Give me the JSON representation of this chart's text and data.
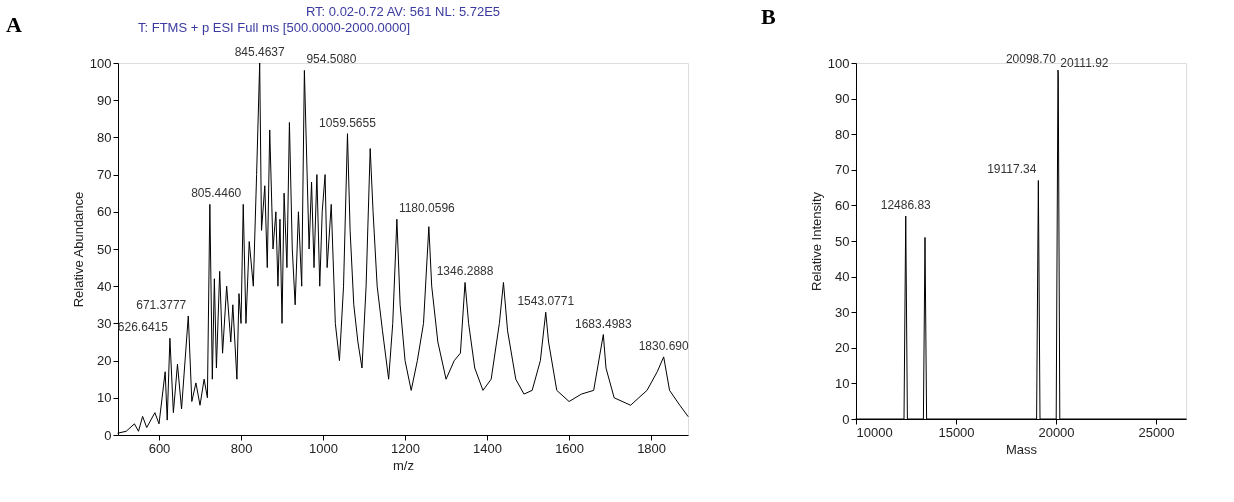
{
  "chart_data": [
    {
      "type": "line",
      "title": "A",
      "xlabel": "m/z",
      "ylabel": "Relative Abundance",
      "xlim": [
        500,
        1890
      ],
      "ylim": [
        0,
        100
      ],
      "xticks": [
        600,
        800,
        1000,
        1200,
        1400,
        1600,
        1800
      ],
      "yticks": [
        0,
        10,
        20,
        30,
        40,
        50,
        60,
        70,
        80,
        90,
        100
      ],
      "grid": false,
      "marker": "none",
      "line_style": "solid",
      "series": [
        {
          "color": "#000000",
          "x": [
            500,
            520,
            540,
            550,
            560,
            570,
            590,
            600,
            615,
            620,
            626.6,
            635,
            645,
            655,
            671.4,
            680,
            690,
            700,
            710,
            718,
            724,
            730,
            735,
            740,
            748,
            755,
            765,
            775,
            780,
            790,
            795,
            800,
            805.4,
            812,
            820,
            830,
            838,
            845.5,
            850,
            858,
            864,
            870,
            878,
            885,
            890,
            895,
            900,
            905,
            912,
            918,
            925,
            932,
            940,
            948,
            954.5,
            960,
            966,
            972,
            978,
            985,
            992,
            998,
            1005,
            1010,
            1020,
            1030,
            1040,
            1050,
            1059.6,
            1066,
            1075,
            1085,
            1095,
            1105,
            1115,
            1122,
            1132,
            1145,
            1160,
            1170,
            1180.1,
            1188,
            1200,
            1215,
            1230,
            1245,
            1258,
            1265,
            1280,
            1300,
            1320,
            1335,
            1346.3,
            1355,
            1370,
            1390,
            1410,
            1430,
            1440,
            1450,
            1470,
            1490,
            1510,
            1530,
            1543.1,
            1550,
            1570,
            1600,
            1630,
            1660,
            1683.5,
            1690,
            1710,
            1750,
            1790,
            1815,
            1830.7,
            1845,
            1870,
            1890
          ],
          "values": [
            0.5,
            1,
            3,
            1,
            5,
            2,
            6,
            3,
            17,
            4,
            26,
            6,
            19,
            7,
            32,
            9,
            14,
            8,
            15,
            10,
            62,
            15,
            42,
            18,
            44,
            22,
            40,
            25,
            35,
            15,
            38,
            30,
            62,
            30,
            52,
            40,
            70,
            100,
            55,
            67,
            45,
            82,
            50,
            60,
            40,
            58,
            30,
            65,
            45,
            84,
            50,
            35,
            60,
            40,
            98,
            75,
            50,
            68,
            45,
            70,
            40,
            60,
            70,
            45,
            62,
            30,
            20,
            40,
            81,
            55,
            35,
            25,
            18,
            40,
            77,
            60,
            40,
            28,
            15,
            30,
            58,
            35,
            20,
            12,
            20,
            30,
            56,
            40,
            25,
            15,
            20,
            22,
            41,
            30,
            18,
            12,
            15,
            30,
            41,
            28,
            15,
            11,
            12,
            20,
            33,
            25,
            12,
            9,
            11,
            12,
            27,
            18,
            10,
            8,
            12,
            17,
            21,
            12,
            8,
            5
          ]
        }
      ],
      "annotations": [
        "RT: 0.02-0.72   AV: 561   NL: 5.72E5",
        "T: FTMS + p ESI Full ms [500.0000-2000.0000]",
        {
          "text": "626.6415",
          "x": 626.6,
          "y": 26
        },
        {
          "text": "671.3777",
          "x": 671.4,
          "y": 32
        },
        {
          "text": "805.4460",
          "x": 805.4,
          "y": 62
        },
        {
          "text": "845.4637",
          "x": 845.5,
          "y": 100
        },
        {
          "text": "954.5080",
          "x": 954.5,
          "y": 98
        },
        {
          "text": "1059.5655",
          "x": 1059.6,
          "y": 81
        },
        {
          "text": "1180.0596",
          "x": 1180.1,
          "y": 58
        },
        {
          "text": "1346.2888",
          "x": 1346.3,
          "y": 41
        },
        {
          "text": "1543.0771",
          "x": 1543.1,
          "y": 33
        },
        {
          "text": "1683.4983",
          "x": 1683.5,
          "y": 27
        },
        {
          "text": "1830.690",
          "x": 1830.7,
          "y": 21
        }
      ]
    },
    {
      "type": "line",
      "title": "B",
      "xlabel": "Mass",
      "ylabel": "Relative Intensity",
      "xlim": [
        10000,
        26500
      ],
      "ylim": [
        0,
        100
      ],
      "xticks": [
        10000,
        15000,
        20000,
        25000
      ],
      "yticks": [
        0,
        10,
        20,
        30,
        40,
        50,
        60,
        70,
        80,
        90,
        100
      ],
      "grid": false,
      "marker": "none",
      "line_style": "solid",
      "series": [
        {
          "color": "#000000",
          "x": [
            10000,
            12400,
            12486.83,
            12570,
            13370,
            13450,
            13530,
            19030,
            19117.34,
            19200,
            20010,
            20098.7,
            20111.92,
            20190,
            26500
          ],
          "values": [
            0,
            0,
            57,
            0,
            0,
            51,
            0,
            0,
            67,
            0,
            0,
            98,
            97,
            0,
            0
          ]
        }
      ],
      "annotations": [
        {
          "text": "12486.83",
          "x": 12486.83,
          "y": 57
        },
        {
          "text": "19117.34",
          "x": 19117.34,
          "y": 67
        },
        {
          "text": "20111.92",
          "x": 20111.92,
          "y": 97
        },
        {
          "text": "20098.70",
          "x": 20098.7,
          "y": 98
        }
      ]
    }
  ]
}
